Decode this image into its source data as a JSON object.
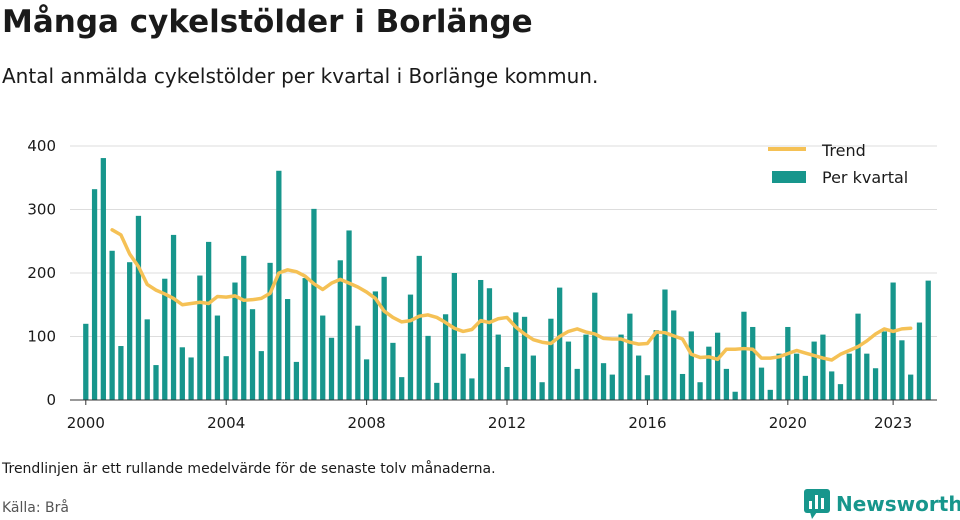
{
  "title": "Många cykelstölder i Borlänge",
  "subtitle": "Antal anmälda cykelstölder per kvartal i Borlänge kommun.",
  "footnote": "Trendlinjen är ett rullande medelvärde för de senaste tolv månaderna.",
  "source": "Källa: Brå",
  "brand": {
    "name": "Newsworthy",
    "icon": "newsworthy-chart-icon"
  },
  "colors": {
    "bars": "#17968c",
    "trend": "#f5c155",
    "grid": "#dddddd",
    "axis": "#333333",
    "text": "#1a1a1a"
  },
  "chart_data": {
    "type": "bar",
    "x_unit": "year",
    "xlim": [
      1999.55,
      2024.25
    ],
    "ylim": [
      0,
      400
    ],
    "yticks": [
      0,
      100,
      200,
      300,
      400
    ],
    "xticks": [
      2000,
      2004,
      2008,
      2012,
      2016,
      2020,
      2023
    ],
    "grid": true,
    "legend": "top-right",
    "series": [
      {
        "name": "Per kvartal",
        "type": "bar",
        "start": 2000.0,
        "step": 0.25,
        "values": [
          120,
          332,
          381,
          235,
          85,
          217,
          290,
          127,
          55,
          191,
          260,
          83,
          67,
          196,
          249,
          133,
          69,
          185,
          227,
          143,
          77,
          216,
          361,
          159,
          60,
          192,
          301,
          133,
          98,
          220,
          267,
          117,
          64,
          171,
          194,
          90,
          36,
          166,
          227,
          101,
          27,
          135,
          200,
          73,
          34,
          189,
          176,
          103,
          52,
          138,
          131,
          70,
          28,
          128,
          177,
          92,
          49,
          103,
          169,
          58,
          40,
          103,
          136,
          70,
          39,
          110,
          174,
          141,
          41,
          108,
          28,
          84,
          106,
          49,
          13,
          139,
          115,
          51,
          16,
          73,
          115,
          73,
          38,
          92,
          103,
          45,
          25,
          73,
          136,
          73,
          50,
          108,
          185,
          94,
          40,
          122,
          188
        ]
      },
      {
        "name": "Trend",
        "type": "line",
        "points": [
          [
            2000.75,
            268
          ],
          [
            2001.0,
            260
          ],
          [
            2001.25,
            230
          ],
          [
            2001.5,
            210
          ],
          [
            2001.75,
            182
          ],
          [
            2002.0,
            173
          ],
          [
            2002.25,
            167
          ],
          [
            2002.5,
            160
          ],
          [
            2002.75,
            150
          ],
          [
            2003.0,
            152
          ],
          [
            2003.25,
            154
          ],
          [
            2003.5,
            152
          ],
          [
            2003.75,
            163
          ],
          [
            2004.0,
            162
          ],
          [
            2004.25,
            164
          ],
          [
            2004.5,
            157
          ],
          [
            2004.75,
            158
          ],
          [
            2005.0,
            160
          ],
          [
            2005.25,
            168
          ],
          [
            2005.5,
            200
          ],
          [
            2005.75,
            205
          ],
          [
            2006.0,
            202
          ],
          [
            2006.25,
            195
          ],
          [
            2006.5,
            183
          ],
          [
            2006.75,
            174
          ],
          [
            2007.0,
            184
          ],
          [
            2007.25,
            190
          ],
          [
            2007.5,
            184
          ],
          [
            2007.75,
            178
          ],
          [
            2008.0,
            170
          ],
          [
            2008.25,
            160
          ],
          [
            2008.5,
            140
          ],
          [
            2008.75,
            130
          ],
          [
            2009.0,
            123
          ],
          [
            2009.25,
            125
          ],
          [
            2009.5,
            132
          ],
          [
            2009.75,
            134
          ],
          [
            2010.0,
            130
          ],
          [
            2010.25,
            122
          ],
          [
            2010.5,
            113
          ],
          [
            2010.75,
            108
          ],
          [
            2011.0,
            111
          ],
          [
            2011.25,
            125
          ],
          [
            2011.5,
            122
          ],
          [
            2011.75,
            128
          ],
          [
            2012.0,
            130
          ],
          [
            2012.25,
            115
          ],
          [
            2012.5,
            104
          ],
          [
            2012.75,
            95
          ],
          [
            2013.0,
            91
          ],
          [
            2013.25,
            89
          ],
          [
            2013.5,
            100
          ],
          [
            2013.75,
            108
          ],
          [
            2014.0,
            112
          ],
          [
            2014.25,
            107
          ],
          [
            2014.5,
            104
          ],
          [
            2014.75,
            97
          ],
          [
            2015.0,
            96
          ],
          [
            2015.25,
            96
          ],
          [
            2015.5,
            91
          ],
          [
            2015.75,
            88
          ],
          [
            2016.0,
            89
          ],
          [
            2016.25,
            107
          ],
          [
            2016.5,
            106
          ],
          [
            2016.75,
            101
          ],
          [
            2017.0,
            96
          ],
          [
            2017.25,
            72
          ],
          [
            2017.5,
            67
          ],
          [
            2017.75,
            68
          ],
          [
            2018.0,
            64
          ],
          [
            2018.25,
            80
          ],
          [
            2018.5,
            80
          ],
          [
            2018.75,
            81
          ],
          [
            2019.0,
            80
          ],
          [
            2019.25,
            66
          ],
          [
            2019.5,
            66
          ],
          [
            2019.75,
            68
          ],
          [
            2020.0,
            73
          ],
          [
            2020.25,
            78
          ],
          [
            2020.5,
            74
          ],
          [
            2020.75,
            70
          ],
          [
            2021.0,
            66
          ],
          [
            2021.25,
            63
          ],
          [
            2021.5,
            72
          ],
          [
            2021.75,
            78
          ],
          [
            2022.0,
            84
          ],
          [
            2022.25,
            93
          ],
          [
            2022.5,
            104
          ],
          [
            2022.75,
            112
          ],
          [
            2023.0,
            108
          ],
          [
            2023.25,
            112
          ],
          [
            2023.5,
            113
          ]
        ]
      }
    ]
  }
}
